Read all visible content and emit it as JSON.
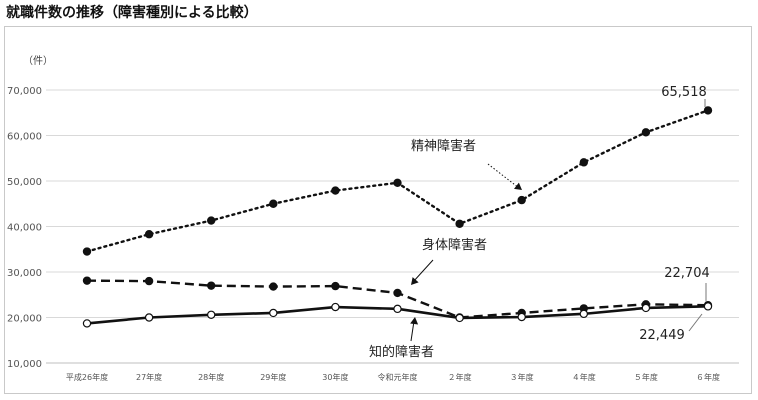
{
  "title": "就職件数の推移（障害種別による比較）",
  "colors": {
    "line": "#111111",
    "grid": "#d9d9d9",
    "marker_fill": "#111111",
    "marker_open": "#ffffff"
  },
  "chart_data": {
    "type": "line",
    "unit_label": "（件）",
    "categories": [
      "平成26年度",
      "27年度",
      "28年度",
      "29年度",
      "30年度",
      "令和元年度",
      "２年度",
      "３年度",
      "４年度",
      "５年度",
      "６年度"
    ],
    "ylim": [
      10000,
      70000
    ],
    "yticks": [
      "10,000",
      "20,000",
      "30,000",
      "40,000",
      "50,000",
      "60,000",
      "70,000"
    ],
    "grid": true,
    "series": [
      {
        "name": "精神障害者",
        "style": "dotted",
        "marker": "filled",
        "values": [
          34500,
          38300,
          41300,
          45000,
          47900,
          49600,
          40600,
          45800,
          54100,
          60700,
          65518
        ]
      },
      {
        "name": "身体障害者",
        "style": "dashed",
        "marker": "filled",
        "values": [
          28100,
          28000,
          27000,
          26800,
          26900,
          25400,
          20000,
          21000,
          22000,
          22900,
          22704
        ]
      },
      {
        "name": "知的障害者",
        "style": "solid",
        "marker": "open",
        "values": [
          18700,
          20000,
          20600,
          21000,
          22300,
          21900,
          19900,
          20100,
          20800,
          22100,
          22449
        ]
      }
    ],
    "data_labels": [
      "65,518",
      "22,704",
      "22,449"
    ]
  }
}
